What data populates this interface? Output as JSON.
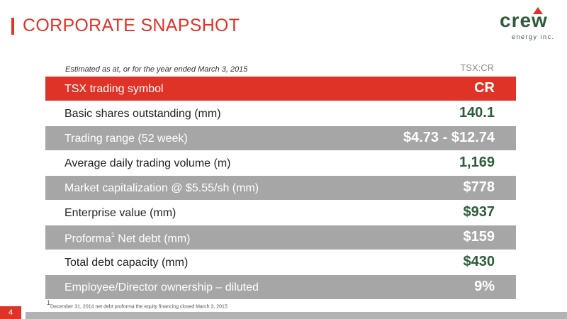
{
  "title": "CORPORATE SNAPSHOT",
  "logo": {
    "word": "crew",
    "sub": "energy inc."
  },
  "caption": "Estimated as at, or for the year ended March 3, 2015",
  "ticker": "TSX:CR",
  "rows": [
    {
      "label": "TSX trading symbol",
      "value": "CR"
    },
    {
      "label": "Basic shares outstanding (mm)",
      "value": "140.1"
    },
    {
      "label": "Trading range (52 week)",
      "value": "$4.73 - $12.74"
    },
    {
      "label": "Average daily trading volume (m)",
      "value": "1,169"
    },
    {
      "label": "Market capitalization @ $5.55/sh (mm)",
      "value": "$778"
    },
    {
      "label": "Enterprise value (mm)",
      "value": "$937"
    },
    {
      "label_pre": "Proforma",
      "label_sup": "1",
      "label_post": " Net debt (mm)",
      "value": "$159"
    },
    {
      "label": "Total debt capacity (mm)",
      "value": "$430"
    },
    {
      "label": "Employee/Director ownership – diluted",
      "value": "9%"
    }
  ],
  "footnote_sup": "1",
  "footnote": "December 31, 2014 net debt proforma the equity financing closed March 3, 2015",
  "page_number": "4",
  "colors": {
    "accent": "#e03327",
    "brand": "#2f5c3a",
    "gray_row": "#a6a6a6"
  }
}
